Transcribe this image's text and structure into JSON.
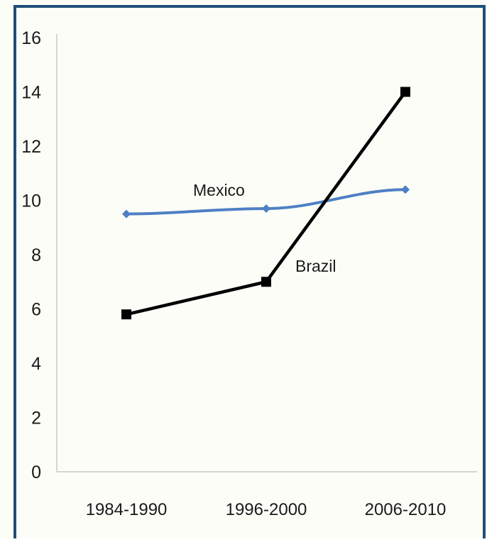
{
  "chart_data": {
    "type": "line",
    "categories": [
      "1984-1990",
      "1996-2000",
      "2006-2010"
    ],
    "series": [
      {
        "name": "Mexico",
        "values": [
          9.5,
          9.7,
          10.4
        ],
        "color": "#4f7fc4",
        "marker": "diamond"
      },
      {
        "name": "Brazil",
        "values": [
          5.8,
          7.0,
          14.0
        ],
        "color": "#000000",
        "marker": "square"
      }
    ],
    "title": "",
    "xlabel": "",
    "ylabel": "",
    "ylim": [
      0,
      16
    ],
    "yticks": [
      "0",
      "2",
      "4",
      "6",
      "8",
      "10",
      "12",
      "14",
      "16"
    ],
    "grid": false,
    "legend": "inline-labels"
  },
  "colors": {
    "background": "#fdfdf8",
    "border": "#1f4e7a",
    "axis": "#c8c8c8"
  }
}
